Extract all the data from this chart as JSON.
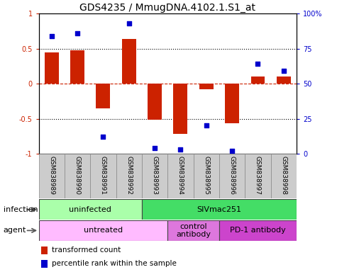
{
  "title": "GDS4235 / MmugDNA.4102.1.S1_at",
  "samples": [
    "GSM838989",
    "GSM838990",
    "GSM838991",
    "GSM838992",
    "GSM838993",
    "GSM838994",
    "GSM838995",
    "GSM838996",
    "GSM838997",
    "GSM838998"
  ],
  "bar_values": [
    0.45,
    0.48,
    -0.35,
    0.64,
    -0.52,
    -0.72,
    -0.08,
    -0.57,
    0.1,
    0.1
  ],
  "percentile_values": [
    84,
    86,
    12,
    93,
    4,
    3,
    20,
    2,
    64,
    59
  ],
  "bar_color": "#cc2200",
  "dot_color": "#0000cc",
  "ylim": [
    -1,
    1
  ],
  "right_ylim": [
    0,
    100
  ],
  "right_yticks": [
    0,
    25,
    50,
    75,
    100
  ],
  "right_yticklabels": [
    "0",
    "25",
    "50",
    "75",
    "100%"
  ],
  "left_yticks": [
    -1,
    -0.5,
    0,
    0.5,
    1
  ],
  "left_yticklabels": [
    "-1",
    "-0.5",
    "0",
    "0.5",
    "1"
  ],
  "infection_groups": [
    {
      "label": "uninfected",
      "start": 0,
      "end": 3,
      "color": "#aaffaa"
    },
    {
      "label": "SIVmac251",
      "start": 4,
      "end": 9,
      "color": "#44dd66"
    }
  ],
  "agent_groups": [
    {
      "label": "untreated",
      "start": 0,
      "end": 4,
      "color": "#ffbbff"
    },
    {
      "label": "control\nantibody",
      "start": 5,
      "end": 6,
      "color": "#dd77dd"
    },
    {
      "label": "PD-1 antibody",
      "start": 7,
      "end": 9,
      "color": "#cc44cc"
    }
  ],
  "legend_items": [
    {
      "label": "transformed count",
      "color": "#cc2200"
    },
    {
      "label": "percentile rank within the sample",
      "color": "#0000cc"
    }
  ],
  "infection_label": "infection",
  "agent_label": "agent",
  "title_fontsize": 10,
  "tick_fontsize": 7,
  "sample_fontsize": 6.5,
  "row_fontsize": 8,
  "legend_fontsize": 7.5,
  "bar_width": 0.55,
  "sample_cell_color": "#cccccc",
  "sample_cell_edge": "#888888"
}
